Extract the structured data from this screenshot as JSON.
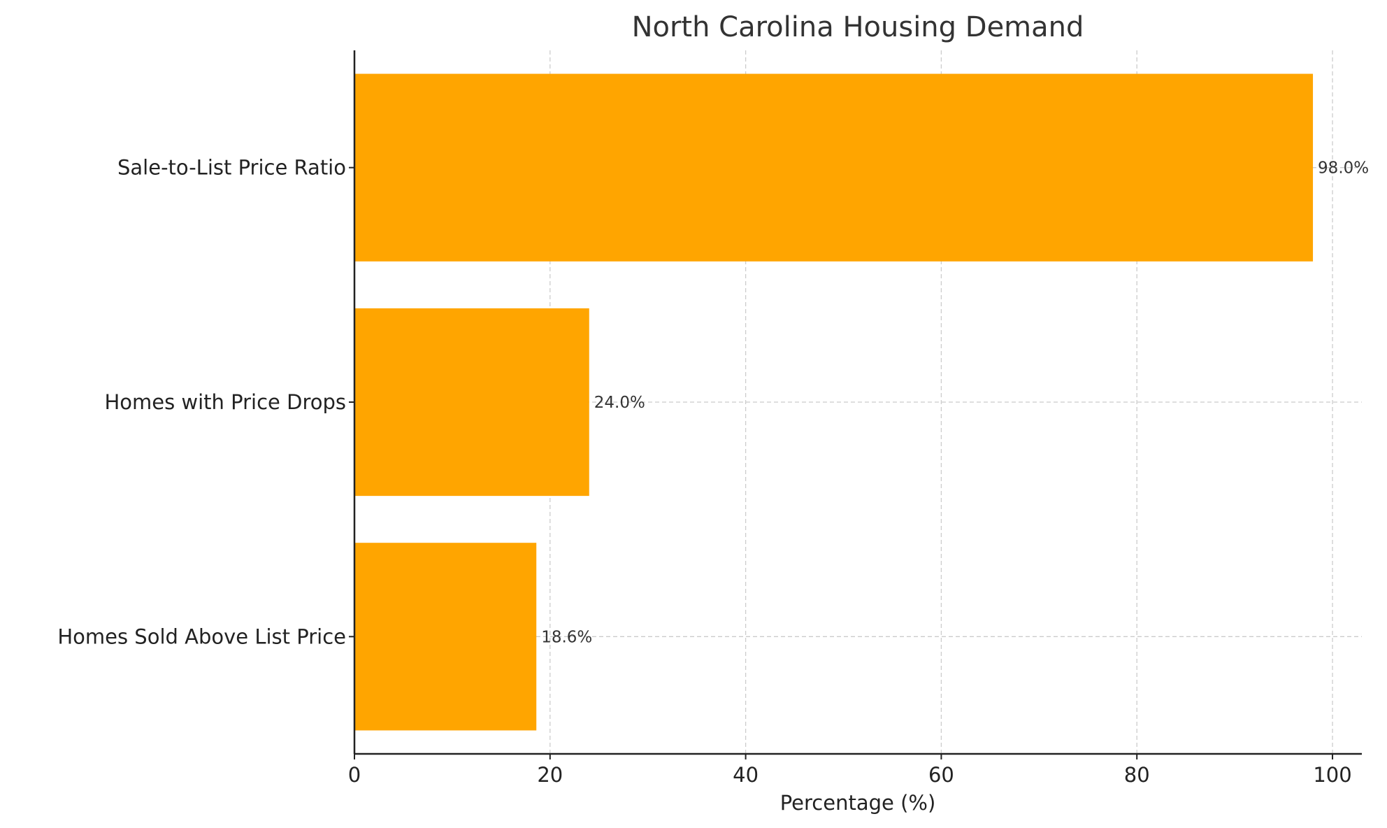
{
  "chart_data": {
    "type": "bar",
    "orientation": "horizontal",
    "title": "North Carolina Housing Demand",
    "xlabel": "Percentage (%)",
    "ylabel": "",
    "categories": [
      "Sale-to-List Price Ratio",
      "Homes with Price Drops",
      "Homes Sold Above List Price"
    ],
    "values": [
      98.0,
      24.0,
      18.6
    ],
    "data_labels": [
      "98.0%",
      "24.0%",
      "18.6%"
    ],
    "xlim": [
      0,
      103
    ],
    "xticks": [
      0,
      20,
      40,
      60,
      80,
      100
    ],
    "xtick_labels": [
      "0",
      "20",
      "40",
      "60",
      "80",
      "100"
    ],
    "grid": true,
    "grid_style": "dashed",
    "colors": {
      "bar": "#FFA500",
      "grid": "#cccccc",
      "axis": "#222222"
    }
  }
}
